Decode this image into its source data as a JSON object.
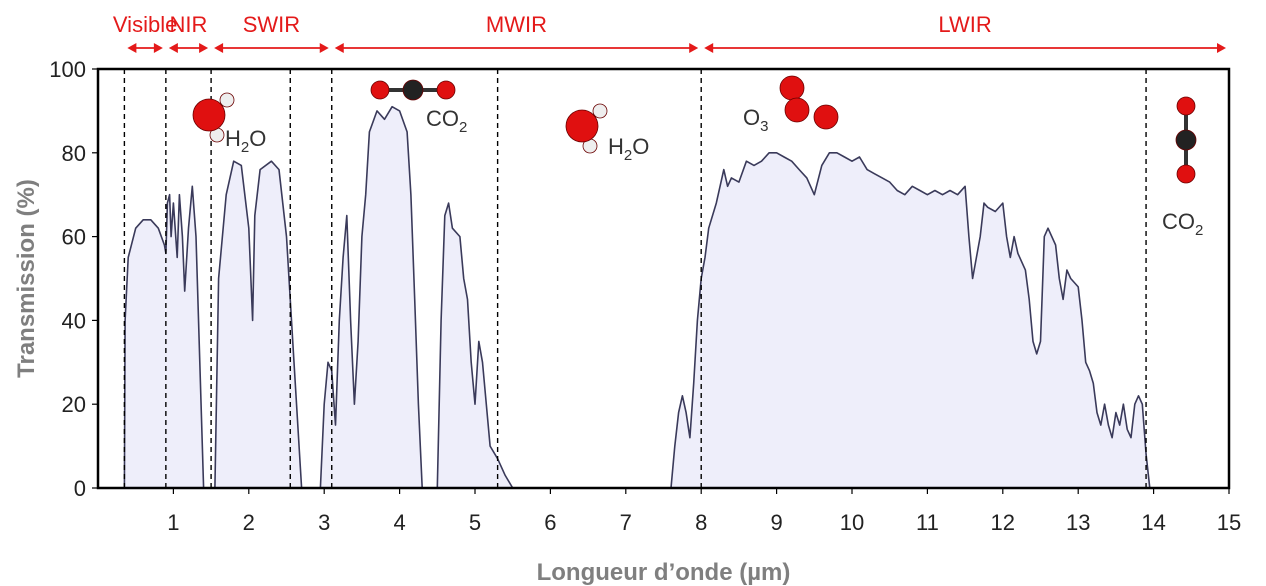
{
  "chart_data": {
    "type": "area",
    "xlabel": "Longueur d’onde (µm)",
    "ylabel": "Transmission (%)",
    "xlim": [
      0,
      15
    ],
    "ylim": [
      0,
      100
    ],
    "x_ticks": [
      1,
      2,
      3,
      4,
      5,
      6,
      7,
      8,
      9,
      10,
      11,
      12,
      13,
      14,
      15
    ],
    "y_ticks": [
      0,
      20,
      40,
      60,
      80,
      100
    ],
    "grid": false,
    "fill_color": "#eeeefa",
    "line_color": "#3a3a5a",
    "band_color": "#e41a1a",
    "bands": [
      {
        "name": "Visible",
        "start": 0.35,
        "end": 0.9
      },
      {
        "name": "NIR",
        "start": 0.9,
        "end": 1.5
      },
      {
        "name": "SWIR",
        "start": 1.5,
        "end": 3.1
      },
      {
        "name": "MWIR",
        "start": 3.1,
        "end": 8.0
      },
      {
        "name": "LWIR",
        "start": 8.0,
        "end": 15.0
      }
    ],
    "divider_lines_x": [
      0.35,
      0.9,
      1.5,
      2.55,
      3.1,
      5.3,
      8.0,
      13.9
    ],
    "molecules": [
      {
        "label_main": "H",
        "label_sub": "2",
        "label_end": "O",
        "kind": "H2O"
      },
      {
        "label_main": "CO",
        "label_sub": "2",
        "label_end": "",
        "kind": "CO2"
      },
      {
        "label_main": "H",
        "label_sub": "2",
        "label_end": "O",
        "kind": "H2O"
      },
      {
        "label_main": "O",
        "label_sub": "3",
        "label_end": "",
        "kind": "O3"
      },
      {
        "label_main": "CO",
        "label_sub": "2",
        "label_end": "",
        "kind": "CO2"
      }
    ],
    "series": [
      {
        "points": [
          [
            0.35,
            0
          ],
          [
            0.36,
            40
          ],
          [
            0.4,
            55
          ],
          [
            0.5,
            62
          ],
          [
            0.6,
            64
          ],
          [
            0.7,
            64
          ],
          [
            0.8,
            62
          ],
          [
            0.88,
            58
          ],
          [
            0.9,
            56
          ],
          [
            0.92,
            68
          ],
          [
            0.95,
            70
          ],
          [
            0.97,
            60
          ],
          [
            1.0,
            68
          ],
          [
            1.05,
            55
          ],
          [
            1.08,
            70
          ],
          [
            1.12,
            60
          ],
          [
            1.15,
            47
          ],
          [
            1.2,
            62
          ],
          [
            1.25,
            72
          ],
          [
            1.3,
            60
          ],
          [
            1.35,
            30
          ],
          [
            1.4,
            0
          ],
          [
            1.55,
            0
          ],
          [
            1.6,
            50
          ],
          [
            1.7,
            70
          ],
          [
            1.8,
            78
          ],
          [
            1.9,
            77
          ],
          [
            2.0,
            62
          ],
          [
            2.05,
            40
          ],
          [
            2.08,
            65
          ],
          [
            2.15,
            76
          ],
          [
            2.3,
            78
          ],
          [
            2.4,
            76
          ],
          [
            2.5,
            60
          ],
          [
            2.6,
            30
          ],
          [
            2.7,
            0
          ],
          [
            2.95,
            0
          ],
          [
            3.0,
            20
          ],
          [
            3.05,
            30
          ],
          [
            3.1,
            28
          ],
          [
            3.15,
            15
          ],
          [
            3.2,
            40
          ],
          [
            3.25,
            55
          ],
          [
            3.3,
            65
          ],
          [
            3.35,
            40
          ],
          [
            3.4,
            20
          ],
          [
            3.45,
            35
          ],
          [
            3.5,
            60
          ],
          [
            3.55,
            70
          ],
          [
            3.6,
            85
          ],
          [
            3.7,
            90
          ],
          [
            3.8,
            88
          ],
          [
            3.9,
            91
          ],
          [
            4.0,
            90
          ],
          [
            4.1,
            85
          ],
          [
            4.15,
            70
          ],
          [
            4.2,
            45
          ],
          [
            4.25,
            20
          ],
          [
            4.3,
            0
          ],
          [
            4.5,
            0
          ],
          [
            4.55,
            40
          ],
          [
            4.6,
            65
          ],
          [
            4.65,
            68
          ],
          [
            4.7,
            62
          ],
          [
            4.8,
            60
          ],
          [
            4.85,
            50
          ],
          [
            4.9,
            45
          ],
          [
            4.95,
            30
          ],
          [
            5.0,
            20
          ],
          [
            5.05,
            35
          ],
          [
            5.1,
            30
          ],
          [
            5.15,
            20
          ],
          [
            5.2,
            10
          ],
          [
            5.3,
            7
          ],
          [
            5.4,
            3
          ],
          [
            5.5,
            0
          ],
          [
            7.6,
            0
          ],
          [
            7.65,
            10
          ],
          [
            7.7,
            18
          ],
          [
            7.75,
            22
          ],
          [
            7.8,
            18
          ],
          [
            7.85,
            12
          ],
          [
            7.9,
            25
          ],
          [
            7.95,
            40
          ],
          [
            8.0,
            50
          ],
          [
            8.05,
            55
          ],
          [
            8.1,
            62
          ],
          [
            8.2,
            68
          ],
          [
            8.3,
            76
          ],
          [
            8.35,
            72
          ],
          [
            8.4,
            74
          ],
          [
            8.5,
            73
          ],
          [
            8.6,
            78
          ],
          [
            8.7,
            77
          ],
          [
            8.8,
            78
          ],
          [
            8.9,
            80
          ],
          [
            9.0,
            80
          ],
          [
            9.1,
            79
          ],
          [
            9.2,
            78
          ],
          [
            9.3,
            76
          ],
          [
            9.4,
            74
          ],
          [
            9.5,
            70
          ],
          [
            9.6,
            77
          ],
          [
            9.7,
            80
          ],
          [
            9.8,
            80
          ],
          [
            9.9,
            79
          ],
          [
            10.0,
            78
          ],
          [
            10.1,
            79
          ],
          [
            10.2,
            76
          ],
          [
            10.3,
            75
          ],
          [
            10.4,
            74
          ],
          [
            10.5,
            73
          ],
          [
            10.6,
            71
          ],
          [
            10.7,
            70
          ],
          [
            10.8,
            72
          ],
          [
            10.9,
            71
          ],
          [
            11.0,
            70
          ],
          [
            11.1,
            71
          ],
          [
            11.2,
            70
          ],
          [
            11.3,
            71
          ],
          [
            11.4,
            70
          ],
          [
            11.5,
            72
          ],
          [
            11.55,
            60
          ],
          [
            11.6,
            50
          ],
          [
            11.65,
            55
          ],
          [
            11.7,
            60
          ],
          [
            11.75,
            68
          ],
          [
            11.8,
            67
          ],
          [
            11.9,
            66
          ],
          [
            12.0,
            68
          ],
          [
            12.05,
            60
          ],
          [
            12.1,
            55
          ],
          [
            12.15,
            60
          ],
          [
            12.2,
            56
          ],
          [
            12.3,
            52
          ],
          [
            12.35,
            45
          ],
          [
            12.4,
            35
          ],
          [
            12.45,
            32
          ],
          [
            12.5,
            35
          ],
          [
            12.55,
            60
          ],
          [
            12.6,
            62
          ],
          [
            12.7,
            58
          ],
          [
            12.75,
            50
          ],
          [
            12.8,
            45
          ],
          [
            12.85,
            52
          ],
          [
            12.9,
            50
          ],
          [
            13.0,
            48
          ],
          [
            13.05,
            40
          ],
          [
            13.1,
            30
          ],
          [
            13.15,
            28
          ],
          [
            13.2,
            25
          ],
          [
            13.25,
            18
          ],
          [
            13.3,
            15
          ],
          [
            13.35,
            20
          ],
          [
            13.4,
            15
          ],
          [
            13.45,
            12
          ],
          [
            13.5,
            18
          ],
          [
            13.55,
            15
          ],
          [
            13.6,
            20
          ],
          [
            13.65,
            14
          ],
          [
            13.7,
            12
          ],
          [
            13.75,
            20
          ],
          [
            13.8,
            22
          ],
          [
            13.85,
            20
          ],
          [
            13.9,
            8
          ],
          [
            13.95,
            0
          ]
        ]
      }
    ]
  }
}
